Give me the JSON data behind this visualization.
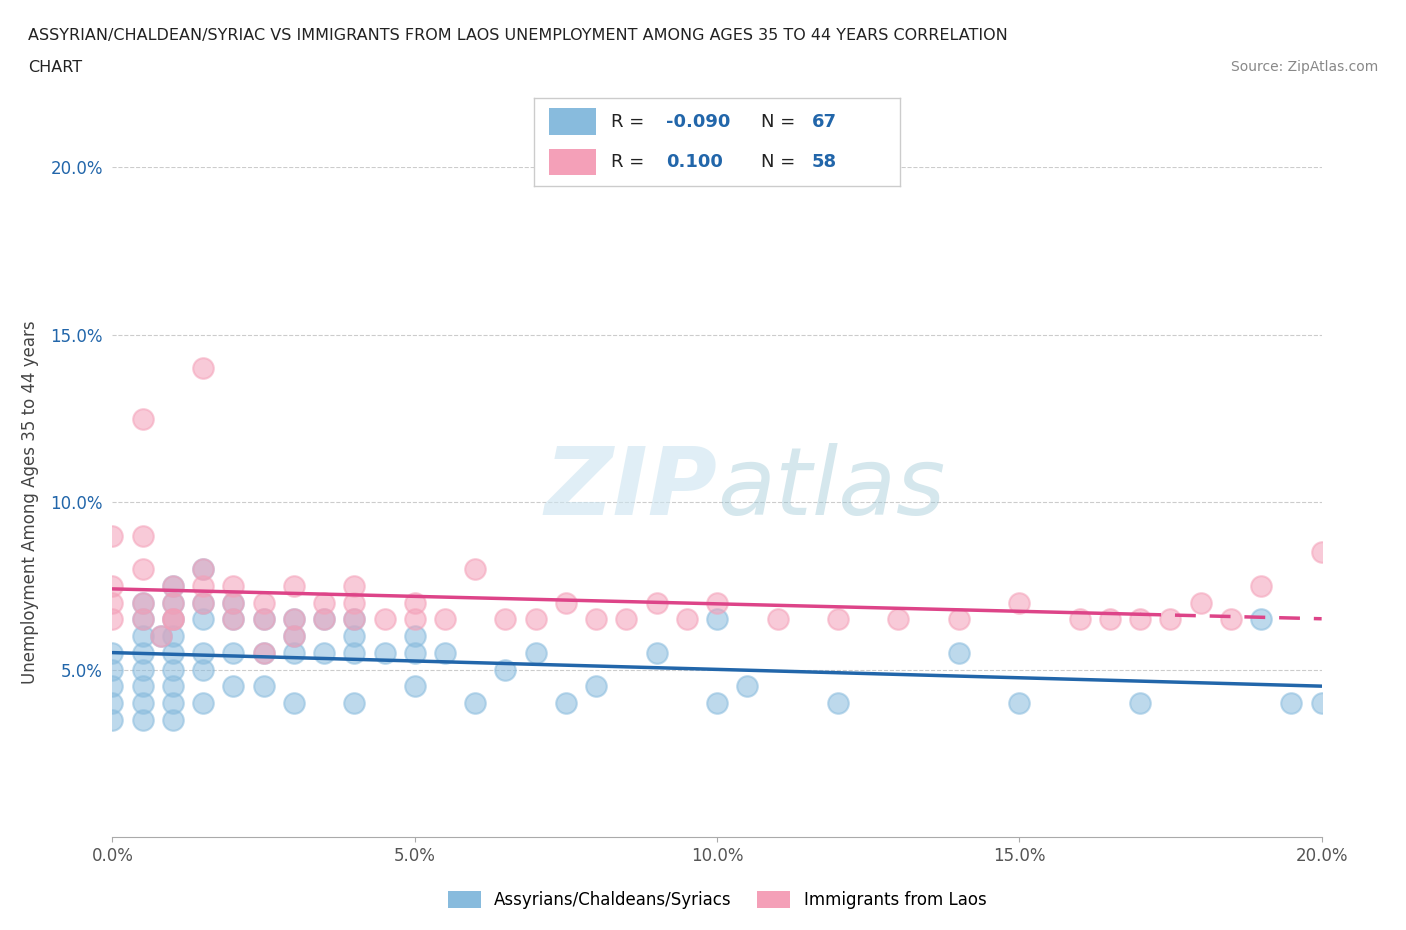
{
  "title_line1": "ASSYRIAN/CHALDEAN/SYRIAC VS IMMIGRANTS FROM LAOS UNEMPLOYMENT AMONG AGES 35 TO 44 YEARS CORRELATION",
  "title_line2": "CHART",
  "source": "Source: ZipAtlas.com",
  "ylabel": "Unemployment Among Ages 35 to 44 years",
  "xlim": [
    0.0,
    0.2
  ],
  "ylim": [
    0.0,
    0.2
  ],
  "xtick_labels": [
    "0.0%",
    "5.0%",
    "10.0%",
    "15.0%",
    "20.0%"
  ],
  "xtick_vals": [
    0.0,
    0.05,
    0.1,
    0.15,
    0.2
  ],
  "ytick_labels": [
    "5.0%",
    "10.0%",
    "15.0%",
    "20.0%"
  ],
  "ytick_vals": [
    0.05,
    0.1,
    0.15,
    0.2
  ],
  "blue_color": "#88bbdd",
  "pink_color": "#f4a0b8",
  "blue_line_color": "#2266aa",
  "pink_line_color": "#dd4488",
  "blue_scatter_x": [
    0.0,
    0.0,
    0.0,
    0.0,
    0.0,
    0.005,
    0.005,
    0.005,
    0.005,
    0.005,
    0.005,
    0.005,
    0.005,
    0.008,
    0.01,
    0.01,
    0.01,
    0.01,
    0.01,
    0.01,
    0.01,
    0.01,
    0.01,
    0.015,
    0.015,
    0.015,
    0.015,
    0.015,
    0.015,
    0.02,
    0.02,
    0.02,
    0.02,
    0.025,
    0.025,
    0.025,
    0.03,
    0.03,
    0.03,
    0.03,
    0.035,
    0.035,
    0.04,
    0.04,
    0.04,
    0.04,
    0.045,
    0.05,
    0.05,
    0.05,
    0.055,
    0.06,
    0.065,
    0.07,
    0.075,
    0.08,
    0.09,
    0.1,
    0.1,
    0.105,
    0.12,
    0.14,
    0.15,
    0.17,
    0.19,
    0.195,
    0.2
  ],
  "blue_scatter_y": [
    0.055,
    0.05,
    0.045,
    0.04,
    0.035,
    0.07,
    0.065,
    0.06,
    0.055,
    0.05,
    0.045,
    0.04,
    0.035,
    0.06,
    0.075,
    0.07,
    0.065,
    0.06,
    0.055,
    0.05,
    0.045,
    0.04,
    0.035,
    0.08,
    0.07,
    0.065,
    0.055,
    0.05,
    0.04,
    0.07,
    0.065,
    0.055,
    0.045,
    0.065,
    0.055,
    0.045,
    0.065,
    0.06,
    0.055,
    0.04,
    0.065,
    0.055,
    0.065,
    0.06,
    0.055,
    0.04,
    0.055,
    0.06,
    0.055,
    0.045,
    0.055,
    0.04,
    0.05,
    0.055,
    0.04,
    0.045,
    0.055,
    0.065,
    0.04,
    0.045,
    0.04,
    0.055,
    0.04,
    0.04,
    0.065,
    0.04,
    0.04
  ],
  "pink_scatter_x": [
    0.0,
    0.0,
    0.0,
    0.0,
    0.005,
    0.005,
    0.005,
    0.005,
    0.005,
    0.008,
    0.01,
    0.01,
    0.01,
    0.01,
    0.015,
    0.015,
    0.015,
    0.015,
    0.02,
    0.02,
    0.02,
    0.025,
    0.025,
    0.025,
    0.03,
    0.03,
    0.03,
    0.035,
    0.035,
    0.04,
    0.04,
    0.04,
    0.045,
    0.05,
    0.05,
    0.055,
    0.06,
    0.065,
    0.07,
    0.075,
    0.08,
    0.085,
    0.09,
    0.095,
    0.1,
    0.11,
    0.12,
    0.13,
    0.14,
    0.15,
    0.16,
    0.165,
    0.17,
    0.175,
    0.18,
    0.185,
    0.19,
    0.2
  ],
  "pink_scatter_y": [
    0.065,
    0.07,
    0.075,
    0.09,
    0.065,
    0.07,
    0.08,
    0.09,
    0.125,
    0.06,
    0.065,
    0.07,
    0.075,
    0.065,
    0.07,
    0.08,
    0.075,
    0.14,
    0.065,
    0.07,
    0.075,
    0.065,
    0.07,
    0.055,
    0.06,
    0.065,
    0.075,
    0.07,
    0.065,
    0.07,
    0.075,
    0.065,
    0.065,
    0.065,
    0.07,
    0.065,
    0.08,
    0.065,
    0.065,
    0.07,
    0.065,
    0.065,
    0.07,
    0.065,
    0.07,
    0.065,
    0.065,
    0.065,
    0.065,
    0.07,
    0.065,
    0.065,
    0.065,
    0.065,
    0.07,
    0.065,
    0.075,
    0.085
  ],
  "legend_label_blue": "Assyrians/Chaldeans/Syriacs",
  "legend_label_pink": "Immigrants from Laos",
  "background_color": "#ffffff",
  "grid_color": "#cccccc",
  "blue_R_text": "-0.090",
  "blue_N_text": "67",
  "pink_R_text": "0.100",
  "pink_N_text": "58"
}
